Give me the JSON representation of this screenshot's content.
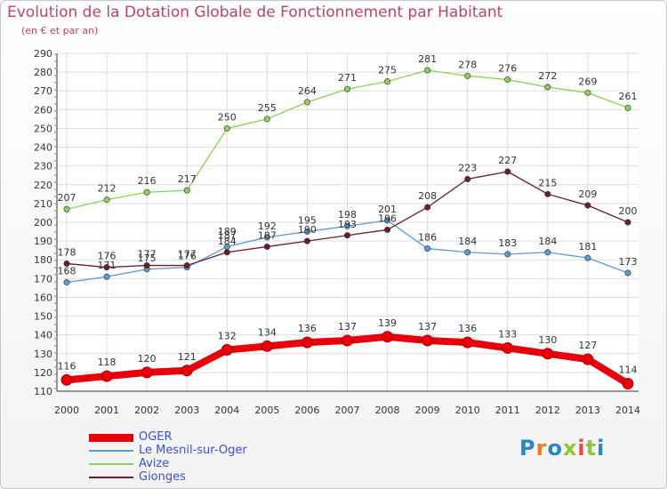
{
  "title": "Evolution de la Dotation Globale de Fonctionnement par Habitant",
  "subtitle": "(en € et par an)",
  "brand": {
    "text": "Proxiti",
    "letter_colors": [
      "#2e86c1",
      "#e67e22",
      "#2e86c1",
      "#8cc63f",
      "#e74c3c",
      "#8cc63f",
      "#2e86c1"
    ]
  },
  "chart_data": {
    "type": "line",
    "title": "Evolution de la Dotation Globale de Fonctionnement par Habitant",
    "subtitle": "(en € et par an)",
    "xlabel": "",
    "ylabel": "",
    "x": [
      "2000",
      "2001",
      "2002",
      "2003",
      "2004",
      "2005",
      "2006",
      "2007",
      "2008",
      "2009",
      "2010",
      "2011",
      "2012",
      "2013",
      "2014"
    ],
    "ylim": [
      110,
      290
    ],
    "yticks": [
      110,
      120,
      130,
      140,
      150,
      160,
      170,
      180,
      190,
      200,
      210,
      220,
      230,
      240,
      250,
      260,
      270,
      280,
      290
    ],
    "grid": true,
    "legend_position": "bottom-left",
    "series": [
      {
        "name": "OGER",
        "color": "#e8000b",
        "values": [
          116,
          118,
          120,
          121,
          132,
          134,
          136,
          137,
          139,
          137,
          136,
          133,
          130,
          127,
          114
        ],
        "labels": [
          "116",
          "118",
          "120",
          "121",
          "132",
          "134",
          "136",
          "137",
          "139",
          "137",
          "136",
          "133",
          "130",
          "127",
          "114"
        ]
      },
      {
        "name": "Le Mesnil-sur-Oger",
        "color": "#5b9bd5",
        "values": [
          168,
          171,
          175,
          176,
          187,
          192,
          195,
          198,
          201,
          186,
          184,
          183,
          184,
          181,
          173
        ],
        "labels": [
          "168",
          "171",
          "175",
          "176",
          "187",
          "192",
          "195",
          "198",
          "",
          "186",
          "184",
          "183",
          "184",
          "181",
          "173"
        ]
      },
      {
        "name": "Avize",
        "color": "#8cd05a",
        "values": [
          207,
          212,
          216,
          217,
          250,
          255,
          264,
          271,
          275,
          281,
          278,
          276,
          272,
          269,
          261
        ],
        "labels": [
          "207",
          "212",
          "216",
          "217",
          "250",
          "255",
          "264",
          "271",
          "275",
          "281",
          "278",
          "276",
          "272",
          "269",
          "261"
        ]
      },
      {
        "name": "Gionges",
        "color": "#6b1e2a",
        "values": [
          178,
          176,
          177,
          177,
          184,
          187,
          190,
          193,
          196,
          208,
          223,
          227,
          215,
          209,
          200
        ],
        "labels": [
          "178",
          "176",
          "177",
          "177",
          "184",
          "187",
          "190",
          "193",
          "196",
          "208",
          "223",
          "227",
          "215",
          "209",
          "200"
        ]
      }
    ],
    "extra_labels": [
      {
        "x": "2004",
        "value": 189,
        "text": "189"
      },
      {
        "x": "2008",
        "value": 201,
        "text": "201"
      }
    ]
  }
}
